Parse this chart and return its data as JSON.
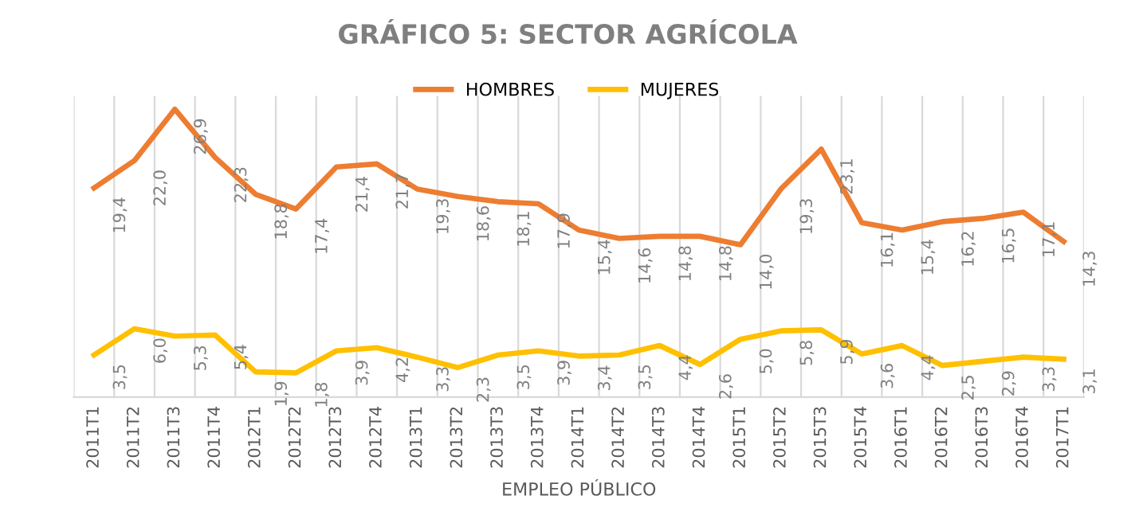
{
  "chart_data": {
    "type": "line",
    "title": "GRÁFICO 5: SECTOR AGRÍCOLA",
    "xlabel": "EMPLEO PÚBLICO",
    "categories": [
      "2011T1",
      "2011T2",
      "2011T3",
      "2011T4",
      "2012T1",
      "2012T2",
      "2012T3",
      "2012T4",
      "2013T1",
      "2013T2",
      "2013T3",
      "2013T4",
      "2014T1",
      "2014T2",
      "2014T3",
      "2014T4",
      "2015T1",
      "2015T2",
      "2015T3",
      "2015T4",
      "2016T1",
      "2016T2",
      "2016T3",
      "2016T4",
      "2017T1"
    ],
    "series": [
      {
        "name": "HOMBRES",
        "color": "#ed7d31",
        "values": [
          19.4,
          22.0,
          26.9,
          22.3,
          18.8,
          17.4,
          21.4,
          21.7,
          19.3,
          18.6,
          18.1,
          17.9,
          15.4,
          14.6,
          14.8,
          14.8,
          14.0,
          19.3,
          23.1,
          16.1,
          15.4,
          16.2,
          16.5,
          17.1,
          14.3
        ],
        "value_labels": [
          "19,4",
          "22,0",
          "26,9",
          "22,3",
          "18,8",
          "17,4",
          "21,4",
          "21,7",
          "19,3",
          "18,6",
          "18,1",
          "17,9",
          "15,4",
          "14,6",
          "14,8",
          "14,8",
          "14,0",
          "19,3",
          "23,1",
          "16,1",
          "15,4",
          "16,2",
          "16,5",
          "17,1",
          "14,3"
        ]
      },
      {
        "name": "MUJERES",
        "color": "#ffc000",
        "values": [
          3.5,
          6.0,
          5.3,
          5.4,
          1.9,
          1.8,
          3.9,
          4.2,
          3.3,
          2.3,
          3.5,
          3.9,
          3.4,
          3.5,
          4.4,
          2.6,
          5.0,
          5.8,
          5.9,
          3.6,
          4.4,
          2.5,
          2.9,
          3.3,
          3.1
        ],
        "value_labels": [
          "3,5",
          "6,0",
          "5,3",
          "5,4",
          "1,9",
          "1,8",
          "3,9",
          "4,2",
          "3,3",
          "2,3",
          "3,5",
          "3,9",
          "3,4",
          "3,5",
          "4,4",
          "2,6",
          "5,0",
          "5,8",
          "5,9",
          "3,6",
          "4,4",
          "2,5",
          "2,9",
          "3,3",
          "3,1"
        ]
      }
    ],
    "grid": "x",
    "legend": "top",
    "marker": "none",
    "line_style": "solid"
  }
}
